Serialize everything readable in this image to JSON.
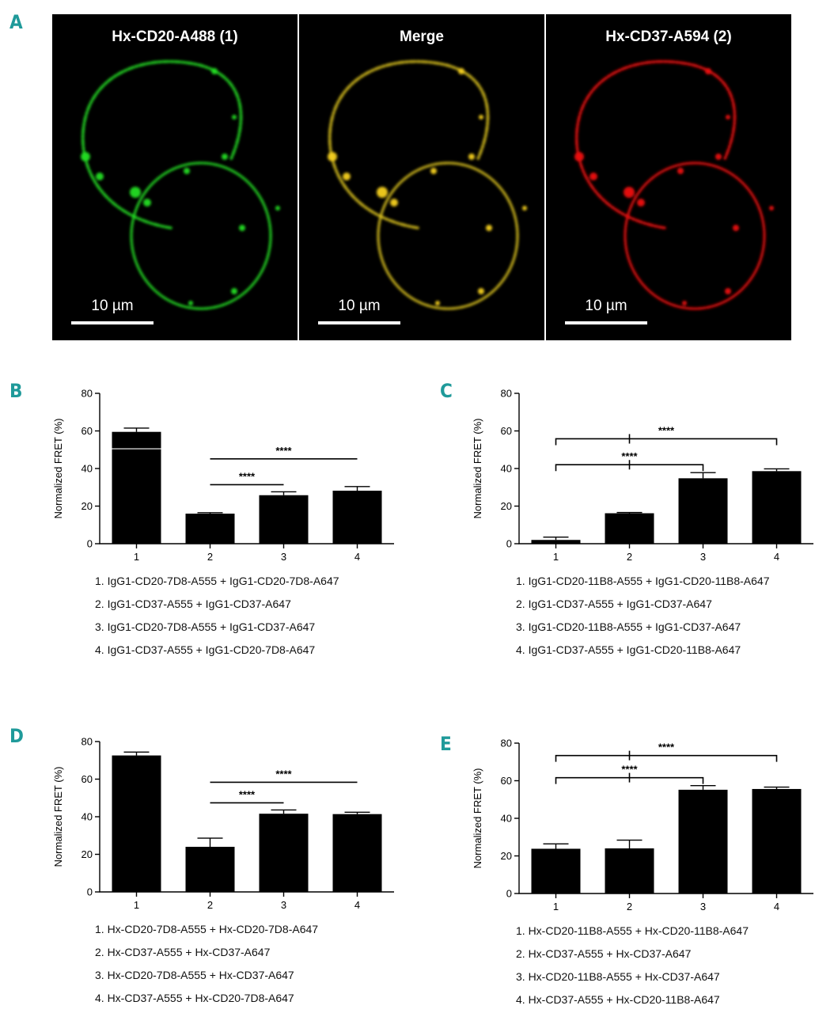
{
  "panel_letters": {
    "a": "A",
    "b": "B",
    "c": "C",
    "d": "D",
    "e": "E"
  },
  "micrographs": [
    {
      "title": "Hx-CD20-A488 (1)",
      "scale_label": "10 µm",
      "channel": "green"
    },
    {
      "title": "Merge",
      "scale_label": "10 µm",
      "channel": "merge"
    },
    {
      "title": "Hx-CD37-A594 (2)",
      "scale_label": "10 µm",
      "channel": "red"
    }
  ],
  "legends": {
    "b": [
      "1. IgG1-CD20-7D8-A555 + IgG1-CD20-7D8-A647",
      "2. IgG1-CD37-A555 + IgG1-CD37-A647",
      "3. IgG1-CD20-7D8-A555 + IgG1-CD37-A647",
      "4. IgG1-CD37-A555 + IgG1-CD20-7D8-A647"
    ],
    "c": [
      "1. IgG1-CD20-11B8-A555 + IgG1-CD20-11B8-A647",
      "2. IgG1-CD37-A555 + IgG1-CD37-A647",
      "3. IgG1-CD20-11B8-A555 + IgG1-CD37-A647",
      "4. IgG1-CD37-A555 + IgG1-CD20-11B8-A647"
    ],
    "d": [
      "1. Hx-CD20-7D8-A555 + Hx-CD20-7D8-A647",
      "2. Hx-CD37-A555 + Hx-CD37-A647",
      "3. Hx-CD20-7D8-A555 + Hx-CD37-A647",
      "4. Hx-CD37-A555 + Hx-CD20-7D8-A647"
    ],
    "e": [
      "1. Hx-CD20-11B8-A555 + Hx-CD20-11B8-A647",
      "2. Hx-CD37-A555 + Hx-CD37-A647",
      "3. Hx-CD20-11B8-A555 + Hx-CD37-A647",
      "4. Hx-CD37-A555 + Hx-CD20-11B8-A647"
    ]
  },
  "colors": {
    "accent_letter": "#1f9a9a",
    "bar": "#000000",
    "green_channel": "#22dd22",
    "red_channel": "#ee1111",
    "merge_channel": "#d8c020"
  },
  "chart_data": [
    {
      "panel": "B",
      "type": "bar",
      "categories": [
        "1",
        "2",
        "3",
        "4"
      ],
      "values": [
        59.5,
        16,
        25.8,
        28.2
      ],
      "errors": [
        2,
        0.5,
        1.8,
        2.2
      ],
      "ylabel": "Normalized FRET (%)",
      "ylim": [
        0,
        80
      ],
      "yticks": [
        0,
        20,
        40,
        60,
        80
      ],
      "axis_break_value": 50.5,
      "significance": [
        {
          "from": 2,
          "to": 3,
          "label": "****",
          "style": "line"
        },
        {
          "from": 2,
          "to": 4,
          "label": "****",
          "style": "line"
        }
      ]
    },
    {
      "panel": "C",
      "type": "bar",
      "categories": [
        "1",
        "2",
        "3",
        "4"
      ],
      "values": [
        2,
        16.2,
        34.8,
        38.6
      ],
      "errors": [
        1.5,
        0.4,
        3,
        1.2
      ],
      "ylabel": "Normalized FRET (%)",
      "ylim": [
        0,
        80
      ],
      "yticks": [
        0,
        20,
        40,
        60,
        80
      ],
      "significance": [
        {
          "from": 1,
          "to": 3,
          "label": "****",
          "style": "bracket"
        },
        {
          "from": 1,
          "to": 4,
          "label": "****",
          "style": "bracket"
        }
      ]
    },
    {
      "panel": "D",
      "type": "bar",
      "categories": [
        "1",
        "2",
        "3",
        "4"
      ],
      "values": [
        72.6,
        24,
        41.6,
        41.4
      ],
      "errors": [
        1.8,
        4.6,
        2,
        1
      ],
      "ylabel": "Normalized FRET (%)",
      "ylim": [
        0,
        80
      ],
      "yticks": [
        0,
        20,
        40,
        60,
        80
      ],
      "significance": [
        {
          "from": 2,
          "to": 3,
          "label": "****",
          "style": "line"
        },
        {
          "from": 2,
          "to": 4,
          "label": "****",
          "style": "line"
        }
      ]
    },
    {
      "panel": "E",
      "type": "bar",
      "categories": [
        "1",
        "2",
        "3",
        "4"
      ],
      "values": [
        23.8,
        24,
        55.2,
        55.6
      ],
      "errors": [
        2.6,
        4.4,
        2.2,
        1
      ],
      "ylabel": "Normalized FRET (%)",
      "ylim": [
        0,
        80
      ],
      "yticks": [
        0,
        20,
        40,
        60,
        80
      ],
      "significance": [
        {
          "from": 1,
          "to": 3,
          "label": "****",
          "style": "bracket"
        },
        {
          "from": 1,
          "to": 4,
          "label": "****",
          "style": "bracket"
        }
      ]
    }
  ]
}
